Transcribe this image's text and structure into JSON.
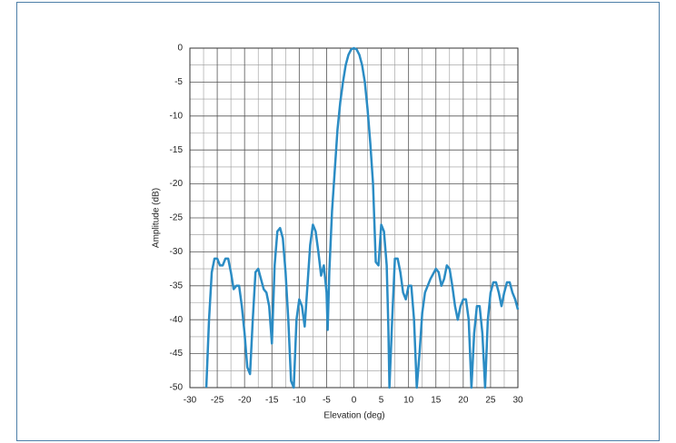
{
  "chart_data": {
    "type": "line",
    "xlabel": "Elevation (deg)",
    "ylabel": "Amplitude (dB)",
    "xlim": [
      -30,
      30
    ],
    "ylim": [
      -50,
      0
    ],
    "xticks": [
      -30,
      -25,
      -20,
      -15,
      -10,
      -5,
      0,
      5,
      10,
      15,
      20,
      25,
      30
    ],
    "yticks": [
      0,
      -5,
      -10,
      -15,
      -20,
      -25,
      -30,
      -35,
      -40,
      -45,
      -50
    ],
    "grid": true,
    "minor_grid": true,
    "series": [
      {
        "color": "#2b8cc4",
        "x": [
          -27,
          -26.5,
          -26,
          -25.5,
          -25,
          -24.5,
          -24,
          -23.5,
          -23,
          -22.5,
          -22,
          -21.5,
          -21,
          -20.5,
          -20,
          -19.5,
          -19,
          -18.5,
          -18,
          -17.5,
          -17,
          -16.5,
          -16,
          -15.5,
          -15,
          -14.5,
          -14,
          -13.5,
          -13,
          -12.5,
          -12,
          -11.5,
          -11,
          -10.5,
          -10,
          -9.5,
          -9,
          -8.5,
          -8,
          -7.5,
          -7,
          -6.5,
          -6,
          -5.5,
          -5,
          -4.8,
          -4.5,
          -4,
          -3.5,
          -3,
          -2.5,
          -2,
          -1.5,
          -1,
          -0.5,
          0,
          0.5,
          1,
          1.5,
          2,
          2.5,
          3,
          3.5,
          4,
          4.5,
          5,
          5.5,
          6,
          6.3,
          6.5,
          7,
          7.5,
          8,
          8.5,
          9,
          9.5,
          10,
          10.5,
          11,
          11.5,
          12,
          12.5,
          13,
          14,
          15,
          15.5,
          16,
          16.5,
          17,
          17.5,
          18,
          18.5,
          19,
          19.5,
          20,
          20.5,
          21,
          21.5,
          22,
          22.5,
          23,
          23.5,
          24,
          24.5,
          25,
          25.5,
          26,
          26.5,
          27,
          27.5,
          28,
          28.5,
          29,
          29.5,
          30
        ],
        "values": [
          -50,
          -40,
          -33,
          -31,
          -31,
          -32,
          -32,
          -31,
          -31,
          -33,
          -35.5,
          -35,
          -35,
          -38,
          -42,
          -47,
          -48,
          -40,
          -33,
          -32.5,
          -34,
          -35.5,
          -36,
          -38,
          -43.5,
          -32,
          -27,
          -26.5,
          -28,
          -33,
          -40,
          -49,
          -50,
          -40,
          -37,
          -38,
          -41,
          -35,
          -29,
          -26,
          -27,
          -30,
          -33.5,
          -32,
          -36,
          -41.5,
          -33,
          -24,
          -18,
          -12,
          -8,
          -5,
          -2.5,
          -1,
          -0.2,
          0,
          -0.2,
          -1,
          -2.5,
          -5,
          -9,
          -14,
          -20,
          -31.5,
          -32,
          -26,
          -27,
          -32,
          -41,
          -50,
          -40,
          -31,
          -31,
          -33,
          -36,
          -37,
          -35,
          -35,
          -40,
          -50,
          -45,
          -39,
          -36,
          -34,
          -32.5,
          -33,
          -35,
          -34,
          -32,
          -32.5,
          -35,
          -38,
          -40,
          -38,
          -37,
          -37,
          -40,
          -50,
          -42,
          -38,
          -38,
          -42,
          -50,
          -40,
          -36,
          -34.5,
          -34.5,
          -36,
          -38,
          -36,
          -34.5,
          -34.5,
          -36,
          -37,
          -38.5
        ]
      }
    ]
  }
}
